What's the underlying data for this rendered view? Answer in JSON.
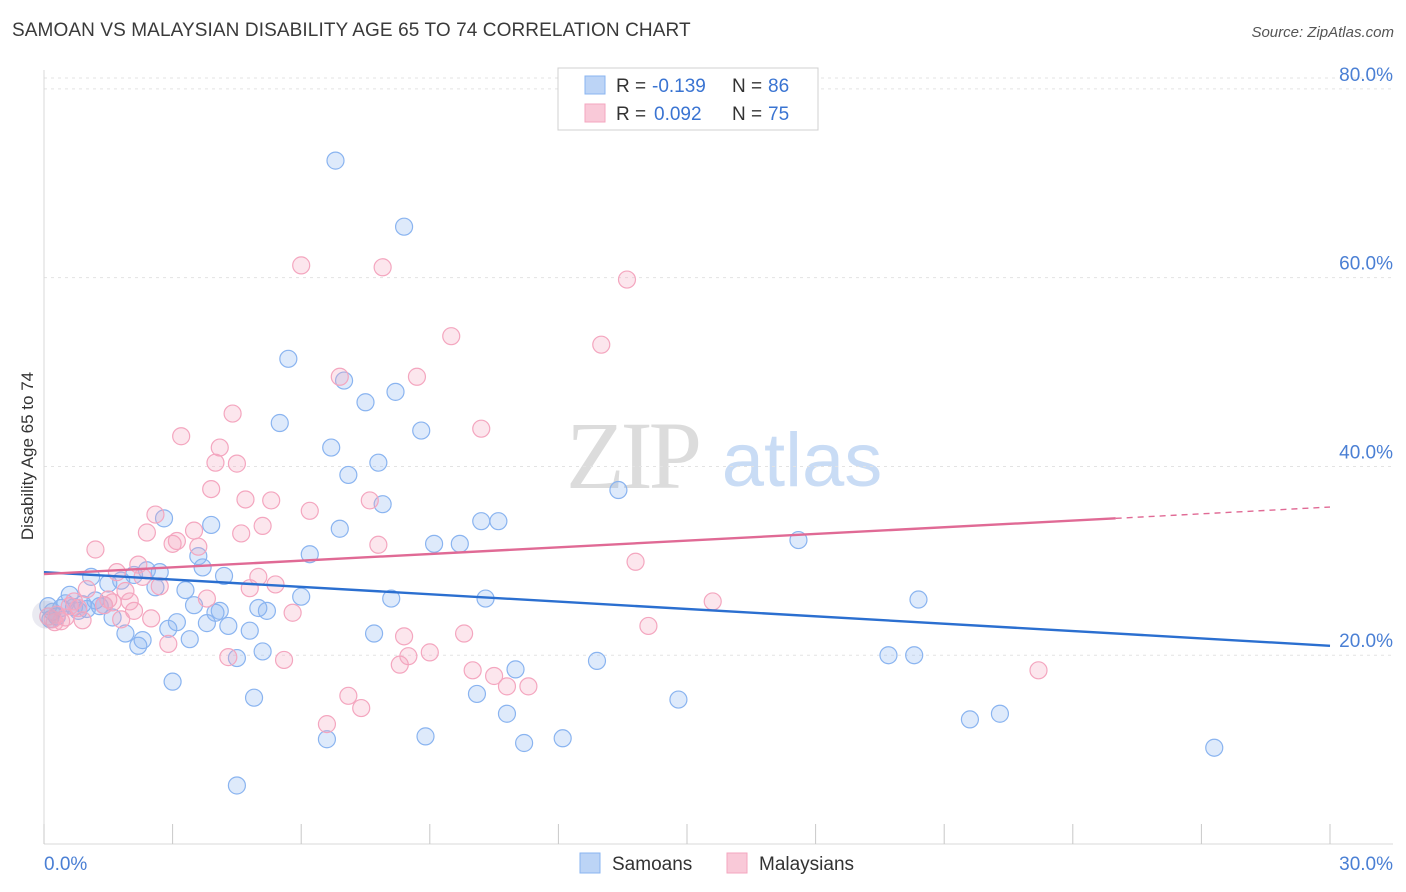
{
  "title": "SAMOAN VS MALAYSIAN DISABILITY AGE 65 TO 74 CORRELATION CHART",
  "source": "Source: ZipAtlas.com",
  "chart_data": {
    "type": "scatter",
    "ylabel": "Disability Age 65 to 74",
    "xlim": [
      0,
      30
    ],
    "ylim": [
      0,
      82
    ],
    "x_tick_labels": [
      "0.0%",
      "30.0%"
    ],
    "y_ticks": [
      20,
      40,
      60,
      80
    ],
    "y_tick_labels": [
      "20.0%",
      "40.0%",
      "60.0%",
      "80.0%"
    ],
    "grid": "horizontal dashed",
    "watermark": {
      "zip": "ZIP",
      "atlas": "atlas"
    },
    "legend_top": [
      {
        "r_label": "R =",
        "r_value": "-0.139",
        "n_label": "N =",
        "n_value": "86"
      },
      {
        "r_label": "R =",
        "r_value": "0.092",
        "n_label": "N =",
        "n_value": "75"
      }
    ],
    "series": [
      {
        "name": "Samoans",
        "color": "#8ab4f0",
        "line_color": "#2b6fd0",
        "trend": {
          "x": [
            0,
            30
          ],
          "y": [
            28.8,
            21.0
          ]
        },
        "points": [
          [
            0.1,
            25.2
          ],
          [
            0.2,
            24.6
          ],
          [
            0.3,
            24.1
          ],
          [
            0.4,
            25.0
          ],
          [
            0.5,
            25.5
          ],
          [
            0.6,
            26.4
          ],
          [
            0.7,
            25.1
          ],
          [
            0.8,
            24.7
          ],
          [
            1.0,
            24.9
          ],
          [
            1.1,
            28.3
          ],
          [
            1.2,
            25.8
          ],
          [
            1.4,
            25.3
          ],
          [
            1.5,
            27.6
          ],
          [
            1.6,
            24.0
          ],
          [
            1.8,
            27.9
          ],
          [
            1.9,
            22.3
          ],
          [
            2.1,
            28.5
          ],
          [
            2.2,
            21.0
          ],
          [
            2.3,
            21.6
          ],
          [
            2.4,
            29.0
          ],
          [
            2.6,
            27.2
          ],
          [
            2.7,
            28.8
          ],
          [
            2.8,
            34.5
          ],
          [
            2.9,
            22.8
          ],
          [
            3.0,
            17.2
          ],
          [
            3.1,
            23.5
          ],
          [
            3.3,
            26.9
          ],
          [
            3.4,
            21.7
          ],
          [
            3.5,
            25.3
          ],
          [
            3.6,
            30.5
          ],
          [
            3.7,
            29.3
          ],
          [
            3.8,
            23.4
          ],
          [
            3.9,
            33.8
          ],
          [
            4.0,
            24.5
          ],
          [
            4.1,
            24.7
          ],
          [
            4.2,
            28.4
          ],
          [
            4.3,
            23.1
          ],
          [
            4.5,
            19.7
          ],
          [
            4.5,
            6.2
          ],
          [
            4.8,
            22.6
          ],
          [
            4.9,
            15.5
          ],
          [
            5.0,
            25.0
          ],
          [
            5.1,
            20.4
          ],
          [
            5.2,
            24.7
          ],
          [
            5.5,
            44.6
          ],
          [
            5.7,
            51.4
          ],
          [
            6.0,
            26.2
          ],
          [
            6.2,
            30.7
          ],
          [
            6.6,
            11.1
          ],
          [
            6.7,
            42.0
          ],
          [
            6.8,
            72.4
          ],
          [
            6.9,
            33.4
          ],
          [
            7.0,
            49.1
          ],
          [
            7.1,
            39.1
          ],
          [
            7.5,
            46.8
          ],
          [
            7.7,
            22.3
          ],
          [
            7.8,
            40.4
          ],
          [
            7.9,
            36.0
          ],
          [
            8.1,
            26.0
          ],
          [
            8.2,
            47.9
          ],
          [
            8.4,
            65.4
          ],
          [
            8.8,
            43.8
          ],
          [
            8.9,
            11.4
          ],
          [
            9.1,
            31.8
          ],
          [
            9.7,
            31.8
          ],
          [
            10.1,
            15.9
          ],
          [
            10.2,
            34.2
          ],
          [
            10.3,
            26.0
          ],
          [
            10.6,
            34.2
          ],
          [
            10.8,
            13.8
          ],
          [
            11.0,
            18.5
          ],
          [
            11.2,
            10.7
          ],
          [
            12.1,
            11.2
          ],
          [
            12.9,
            19.4
          ],
          [
            13.4,
            37.5
          ],
          [
            14.8,
            15.3
          ],
          [
            17.6,
            32.2
          ],
          [
            19.7,
            20.0
          ],
          [
            20.3,
            20.0
          ],
          [
            20.4,
            25.9
          ],
          [
            21.6,
            13.2
          ],
          [
            22.3,
            13.8
          ],
          [
            27.3,
            10.2
          ],
          [
            0.15,
            23.8
          ],
          [
            0.9,
            25.4
          ],
          [
            1.3,
            25.2
          ]
        ]
      },
      {
        "name": "Malaysians",
        "color": "#f4a6bf",
        "line_color": "#e06a95",
        "trend": {
          "x": [
            0,
            25
          ],
          "y": [
            28.6,
            34.5
          ]
        },
        "trend_dashed": {
          "x": [
            25,
            30
          ],
          "y": [
            34.5,
            35.7
          ]
        },
        "points": [
          [
            0.1,
            24.1
          ],
          [
            0.2,
            23.8
          ],
          [
            0.3,
            24.3
          ],
          [
            0.4,
            23.6
          ],
          [
            0.5,
            24.0
          ],
          [
            0.6,
            25.2
          ],
          [
            0.7,
            25.7
          ],
          [
            0.8,
            25.0
          ],
          [
            1.0,
            27.0
          ],
          [
            1.2,
            31.2
          ],
          [
            1.4,
            25.3
          ],
          [
            1.5,
            25.9
          ],
          [
            1.7,
            28.8
          ],
          [
            1.8,
            23.8
          ],
          [
            1.9,
            26.8
          ],
          [
            2.0,
            25.7
          ],
          [
            2.2,
            29.6
          ],
          [
            2.3,
            28.3
          ],
          [
            2.4,
            33.0
          ],
          [
            2.5,
            23.9
          ],
          [
            2.6,
            34.9
          ],
          [
            2.7,
            27.3
          ],
          [
            2.9,
            21.2
          ],
          [
            3.0,
            31.8
          ],
          [
            3.1,
            32.1
          ],
          [
            3.2,
            43.2
          ],
          [
            3.5,
            33.2
          ],
          [
            3.6,
            31.5
          ],
          [
            3.8,
            26.0
          ],
          [
            3.9,
            37.6
          ],
          [
            4.0,
            40.4
          ],
          [
            4.1,
            42.0
          ],
          [
            4.3,
            19.8
          ],
          [
            4.4,
            45.6
          ],
          [
            4.5,
            40.3
          ],
          [
            4.6,
            32.9
          ],
          [
            4.7,
            36.5
          ],
          [
            4.8,
            27.1
          ],
          [
            5.0,
            28.3
          ],
          [
            5.1,
            33.7
          ],
          [
            5.3,
            36.4
          ],
          [
            5.4,
            27.5
          ],
          [
            5.6,
            19.5
          ],
          [
            5.8,
            24.5
          ],
          [
            6.0,
            61.3
          ],
          [
            6.2,
            35.3
          ],
          [
            6.6,
            12.7
          ],
          [
            6.9,
            49.5
          ],
          [
            7.1,
            15.7
          ],
          [
            7.4,
            14.4
          ],
          [
            7.6,
            36.4
          ],
          [
            7.8,
            31.7
          ],
          [
            7.9,
            61.1
          ],
          [
            8.3,
            19.0
          ],
          [
            8.4,
            22.0
          ],
          [
            8.5,
            19.9
          ],
          [
            8.7,
            49.5
          ],
          [
            9.0,
            20.3
          ],
          [
            9.5,
            53.8
          ],
          [
            9.8,
            22.3
          ],
          [
            10.0,
            18.4
          ],
          [
            10.2,
            44.0
          ],
          [
            10.5,
            17.8
          ],
          [
            10.8,
            16.7
          ],
          [
            11.3,
            16.7
          ],
          [
            13.0,
            52.9
          ],
          [
            13.6,
            59.8
          ],
          [
            13.8,
            29.9
          ],
          [
            14.1,
            23.1
          ],
          [
            15.6,
            25.7
          ],
          [
            23.2,
            18.4
          ],
          [
            0.25,
            23.5
          ],
          [
            0.9,
            23.7
          ],
          [
            1.6,
            25.6
          ],
          [
            2.1,
            24.7
          ]
        ]
      }
    ]
  }
}
